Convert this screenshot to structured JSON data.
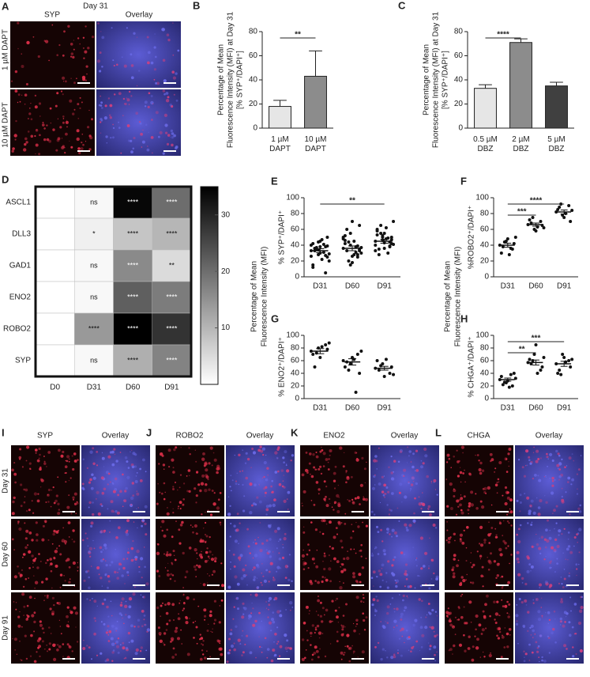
{
  "panel_A": {
    "letter": "A",
    "title": "Day 31",
    "columns": [
      "SYP",
      "Overlay"
    ],
    "rows": [
      "1 µM DAPT",
      "10 µM DAPT"
    ]
  },
  "panels_IL": {
    "rows": [
      "Day 31",
      "Day 60",
      "Day 91"
    ],
    "panels": [
      {
        "letter": "I",
        "columns": [
          "SYP",
          "Overlay"
        ]
      },
      {
        "letter": "J",
        "columns": [
          "ROBO2",
          "Overlay"
        ]
      },
      {
        "letter": "K",
        "columns": [
          "ENO2",
          "Overlay"
        ]
      },
      {
        "letter": "L",
        "columns": [
          "CHGA",
          "Overlay"
        ]
      }
    ]
  },
  "shared_ylabel": [
    "Percentage of Mean",
    "Fluorescence Intensity (MFI)"
  ],
  "chart_data": [
    {
      "type": "bar",
      "panel": "B",
      "categories": [
        [
          "1 µM",
          "DAPT"
        ],
        [
          "10 µM",
          "DAPT"
        ]
      ],
      "values": [
        18,
        43
      ],
      "errors": [
        5,
        21
      ],
      "colors": [
        "#e6e6e6",
        "#8c8c8c"
      ],
      "ylim": [
        0,
        80
      ],
      "yticks": [
        0,
        20,
        40,
        60,
        80
      ],
      "ylabel": [
        "Percentage of Mean",
        "Fluorescence Intensity (MFI) at Day 31",
        "[% SYP⁺/DAPI⁺]"
      ],
      "significance": [
        {
          "label": "**",
          "between": [
            [
              "1 µM",
              "DAPT"
            ],
            [
              "10 µM",
              "DAPT"
            ]
          ]
        }
      ]
    },
    {
      "type": "bar",
      "panel": "C",
      "categories": [
        [
          "0.5 µM",
          "DBZ"
        ],
        [
          "2 µM",
          "DBZ"
        ],
        [
          "5 µM",
          "DBZ"
        ]
      ],
      "values": [
        33,
        71,
        35
      ],
      "errors": [
        3,
        3,
        3
      ],
      "colors": [
        "#e6e6e6",
        "#8c8c8c",
        "#404040"
      ],
      "ylim": [
        0,
        80
      ],
      "yticks": [
        0,
        20,
        40,
        60,
        80
      ],
      "ylabel": [
        "Percentage of Mean",
        "Fluorescence Intensity (MFI) at Day 31",
        "[% SYP⁺/DAPI⁺]"
      ],
      "significance": [
        {
          "label": "****",
          "between": [
            [
              "0.5 µM",
              "DBZ"
            ],
            [
              "2 µM",
              "DBZ"
            ]
          ]
        }
      ]
    },
    {
      "type": "heatmap",
      "panel": "D",
      "rows": [
        "ASCL1",
        "DLL3",
        "GAD1",
        "ENO2",
        "ROBO2",
        "SYP"
      ],
      "columns": [
        "D0",
        "D31",
        "D60",
        "D91"
      ],
      "values": [
        [
          0,
          1,
          34,
          20
        ],
        [
          0,
          2,
          8,
          10
        ],
        [
          0,
          1,
          16,
          5
        ],
        [
          0,
          1,
          22,
          18
        ],
        [
          0,
          14,
          35,
          28
        ],
        [
          0,
          1,
          11,
          17
        ]
      ],
      "annotations": [
        [
          "ns",
          "****",
          "****"
        ],
        [
          "*",
          "****",
          "****"
        ],
        [
          "ns",
          "****",
          "**"
        ],
        [
          "ns",
          "****",
          "****"
        ],
        [
          "****",
          "****",
          "****"
        ],
        [
          "ns",
          "****",
          "****"
        ]
      ],
      "clim": [
        0,
        35
      ],
      "cticks": [
        10,
        20,
        30
      ]
    },
    {
      "type": "dot",
      "panel": "E",
      "categories": [
        "D31",
        "D60",
        "D91"
      ],
      "points": [
        [
          33,
          28,
          38,
          42,
          30,
          25,
          36,
          47,
          20,
          35,
          31,
          40,
          44,
          27,
          15,
          38,
          50,
          33,
          22,
          29,
          37,
          41,
          26,
          34,
          5,
          12,
          45,
          39
        ],
        [
          36,
          40,
          28,
          52,
          70,
          65,
          33,
          45,
          30,
          20,
          38,
          48,
          55,
          25,
          42,
          18,
          35,
          60,
          28,
          37,
          44,
          31,
          50,
          15,
          39,
          46,
          26,
          33
        ],
        [
          45,
          50,
          38,
          60,
          55,
          42,
          35,
          48,
          70,
          65,
          30,
          40,
          52,
          44,
          58,
          36,
          47,
          28,
          62,
          41,
          55,
          49,
          33,
          46,
          39,
          53,
          43,
          50
        ]
      ],
      "means": [
        33,
        36,
        45
      ],
      "sem": [
        2.5,
        3,
        2.5
      ],
      "ylim": [
        0,
        100
      ],
      "yticks": [
        0,
        20,
        40,
        60,
        80,
        100
      ],
      "ylabel": [
        "% SYP⁺/DAPI⁺"
      ],
      "significance": [
        {
          "label": "**",
          "between": [
            "D31",
            "D91"
          ]
        }
      ]
    },
    {
      "type": "dot",
      "panel": "F",
      "categories": [
        "D31",
        "D60",
        "D91"
      ],
      "points": [
        [
          40,
          45,
          35,
          30,
          48,
          42,
          38,
          28,
          50,
          44,
          36
        ],
        [
          66,
          60,
          70,
          72,
          58,
          65,
          68,
          63,
          62,
          75
        ],
        [
          82,
          78,
          90,
          85,
          75,
          70,
          88,
          80,
          84,
          92
        ]
      ],
      "means": [
        40,
        66,
        82
      ],
      "sem": [
        2.5,
        2,
        2.5
      ],
      "ylim": [
        0,
        100
      ],
      "yticks": [
        0,
        20,
        40,
        60,
        80,
        100
      ],
      "ylabel": [
        "%ROBO2⁺/DAPI⁺"
      ],
      "significance": [
        {
          "label": "***",
          "between": [
            "D31",
            "D60"
          ]
        },
        {
          "label": "****",
          "between": [
            "D31",
            "D91"
          ]
        }
      ]
    },
    {
      "type": "dot",
      "panel": "G",
      "categories": [
        "D31",
        "D60",
        "D91"
      ],
      "points": [
        [
          75,
          80,
          85,
          70,
          65,
          78,
          50,
          82,
          88,
          72
        ],
        [
          60,
          55,
          70,
          50,
          65,
          40,
          58,
          62,
          75,
          45,
          10
        ],
        [
          48,
          55,
          40,
          60,
          35,
          50,
          45,
          62,
          38,
          52
        ]
      ],
      "means": [
        75,
        58,
        48
      ],
      "sem": [
        4,
        5,
        3
      ],
      "ylim": [
        0,
        100
      ],
      "yticks": [
        0,
        20,
        40,
        60,
        80,
        100
      ],
      "ylabel": [
        "% ENO2⁺/DAPI⁺"
      ],
      "significance": []
    },
    {
      "type": "dot",
      "panel": "H",
      "categories": [
        "D31",
        "D60",
        "D91"
      ],
      "points": [
        [
          30,
          25,
          20,
          35,
          28,
          40,
          22,
          18,
          32,
          26,
          38
        ],
        [
          57,
          70,
          45,
          62,
          85,
          50,
          55,
          40,
          65,
          60
        ],
        [
          55,
          70,
          60,
          40,
          65,
          50,
          45,
          58,
          62,
          38
        ]
      ],
      "means": [
        30,
        57,
        55
      ],
      "sem": [
        2.5,
        4,
        4
      ],
      "ylim": [
        0,
        100
      ],
      "yticks": [
        0,
        20,
        40,
        60,
        80,
        100
      ],
      "ylabel": [
        "% CHGA⁺/DAPI⁺"
      ],
      "significance": [
        {
          "label": "**",
          "between": [
            "D31",
            "D60"
          ]
        },
        {
          "label": "***",
          "between": [
            "D31",
            "D91"
          ]
        }
      ]
    }
  ]
}
